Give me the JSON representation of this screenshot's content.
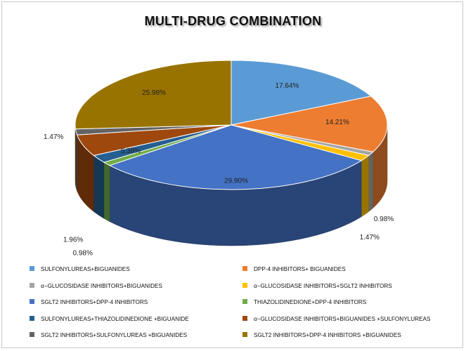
{
  "chart_data": {
    "type": "pie",
    "title": "MULTI-DRUG COMBINATION",
    "categories": [
      "SULFONYLUREAS+BIGUANIDES",
      "DPP-4 INHIBITORS+ BIGUANIDES",
      "α−GLUCOSIDASE INHIBITORS+BIGUANIDES",
      "α−GLUCOSIDASE INHIBITORS+SGLT2 INHIBITORS",
      "SGLT2 INHIBITORS+DPP-4 INHIBITORS",
      "THIAZOLIDINEDIONE+DPP-4 INHIBITORS",
      "SULFONYLUREAS+THIAZOLIDINEDIONE +BIGUANIDE",
      "α−GLUCOSIDASE INHIBITORS+BIGUANIDES +SULFONYLUREAS",
      "SGLT2 INHIBITORS+SULFONYLUREAS +BIGUANIDES",
      "SGLT2 INHIBITORS+DPP-4 INHIBITORS +BIGUANIDES"
    ],
    "values": [
      17.64,
      14.21,
      0.98,
      1.47,
      29.9,
      0.98,
      1.96,
      5.39,
      1.47,
      25.98
    ],
    "data_labels": [
      "17.64%",
      "14.21%",
      "0.98%",
      "1.47%",
      "29.90%",
      "0.98%",
      "1.96%",
      "5.39%",
      "1.47%",
      "25.98%"
    ],
    "colors": [
      "#5b9bd5",
      "#ed7d31",
      "#a5a5a5",
      "#ffc000",
      "#4472c4",
      "#70ad47",
      "#255e91",
      "#9e480e",
      "#636363",
      "#997300"
    ],
    "legend_position": "bottom",
    "style": "3d"
  }
}
